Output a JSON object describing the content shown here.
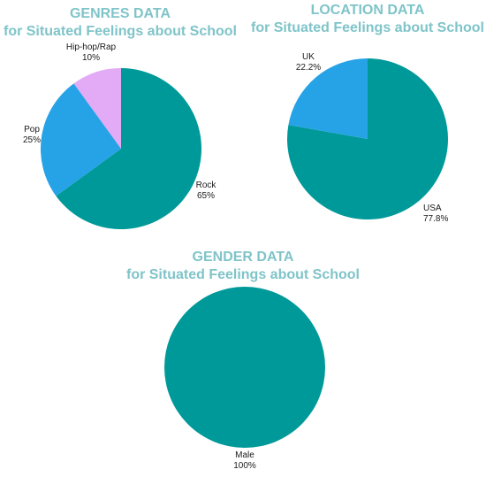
{
  "chart_data": [
    {
      "type": "pie",
      "title": "GENRES DATA",
      "subtitle": "for Situated Feelings about School",
      "slices": [
        {
          "label": "Rock",
          "value": 65,
          "value_label": "65%",
          "color": "#009999"
        },
        {
          "label": "Pop",
          "value": 25,
          "value_label": "25%",
          "color": "#25a3e6"
        },
        {
          "label": "Hip-hop/Rap",
          "value": 10,
          "value_label": "10%",
          "color": "#e3aaf5"
        }
      ]
    },
    {
      "type": "pie",
      "title": "LOCATION DATA",
      "subtitle": "for Situated Feelings about School",
      "slices": [
        {
          "label": "USA",
          "value": 77.8,
          "value_label": "77.8%",
          "color": "#009999"
        },
        {
          "label": "UK",
          "value": 22.2,
          "value_label": "22.2%",
          "color": "#25a3e6"
        }
      ]
    },
    {
      "type": "pie",
      "title": "GENDER DATA",
      "subtitle": "for Situated Feelings about School",
      "slices": [
        {
          "label": "Male",
          "value": 100,
          "value_label": "100%",
          "color": "#009999"
        }
      ]
    }
  ]
}
